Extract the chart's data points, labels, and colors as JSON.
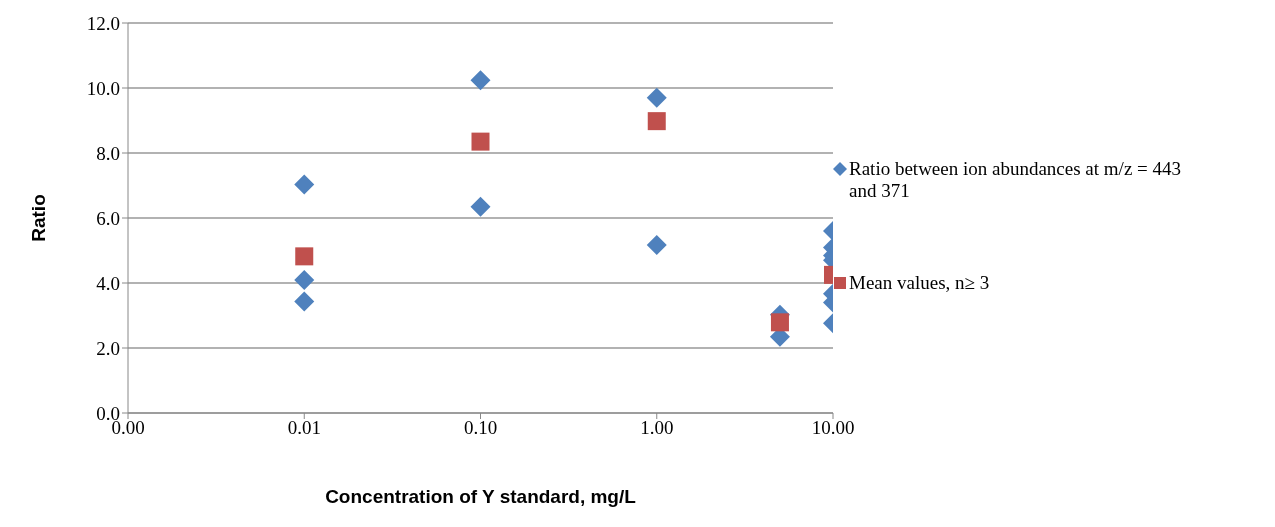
{
  "chart_data": {
    "type": "scatter",
    "xlabel": "Concentration of Y standard, mg/L",
    "ylabel": "Ratio",
    "log": "x",
    "xlim": [
      0.001,
      10
    ],
    "xticks": [
      {
        "value": 0.001,
        "label": "0.00"
      },
      {
        "value": 0.01,
        "label": "0.01"
      },
      {
        "value": 0.1,
        "label": "0.10"
      },
      {
        "value": 1,
        "label": "1.00"
      },
      {
        "value": 10,
        "label": "10.00"
      }
    ],
    "ylim": [
      0,
      12
    ],
    "yticks": [
      {
        "value": 0,
        "label": "0.0"
      },
      {
        "value": 2,
        "label": "2.0"
      },
      {
        "value": 4,
        "label": "4.0"
      },
      {
        "value": 6,
        "label": "6.0"
      },
      {
        "value": 8,
        "label": "8.0"
      },
      {
        "value": 10,
        "label": "10.0"
      },
      {
        "value": 12,
        "label": "12.0"
      }
    ],
    "grid": "y",
    "legend": "right",
    "series": [
      {
        "name": "Ratio between ion abundances at m/z = 443 and 371",
        "color": "#4f81bd",
        "marker": "diamond",
        "x": [
          0.01,
          0.01,
          0.01,
          0.1,
          0.1,
          1,
          1,
          5,
          5,
          10,
          10,
          10,
          10,
          10,
          10,
          10
        ],
        "values": [
          7.03,
          4.09,
          3.43,
          10.24,
          6.35,
          9.7,
          5.17,
          3.02,
          2.35,
          5.6,
          5.09,
          4.85,
          4.7,
          3.67,
          3.4,
          2.76
        ]
      },
      {
        "name": "Mean values, n≥ 3",
        "color": "#c0504d",
        "marker": "square",
        "x": [
          0.01,
          0.1,
          1,
          5,
          10
        ],
        "values": [
          4.82,
          8.35,
          8.98,
          2.79,
          4.25
        ]
      }
    ]
  }
}
